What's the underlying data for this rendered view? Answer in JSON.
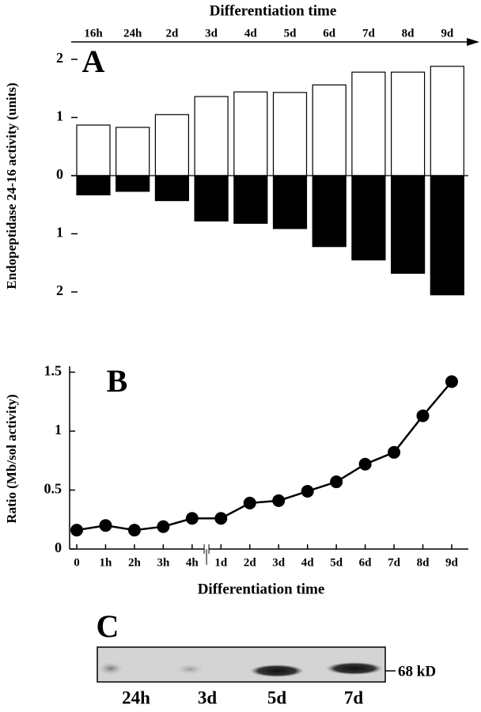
{
  "chart_data": [
    {
      "type": "bar",
      "title": "Differentiation time",
      "annotations": [
        "A"
      ],
      "y_label": "Endopeptidase 24-16 activity (units)",
      "categories": [
        "16h",
        "24h",
        "2d",
        "3d",
        "4d",
        "5d",
        "6d",
        "7d",
        "8d",
        "9d"
      ],
      "series": [
        {
          "color": "#ffffff",
          "values": [
            0.87,
            0.83,
            1.05,
            1.36,
            1.44,
            1.43,
            1.56,
            1.78,
            1.78,
            1.88
          ]
        },
        {
          "color": "#000000",
          "values": [
            -0.33,
            -0.27,
            -0.43,
            -0.78,
            -0.82,
            -0.91,
            -1.22,
            -1.45,
            -1.68,
            -2.05
          ]
        }
      ],
      "ylim": [
        -2.1,
        2.1
      ],
      "yticks": [
        2,
        1,
        0,
        {
          "value": -1,
          "label": "1"
        },
        {
          "value": -2,
          "label": "2"
        }
      ]
    },
    {
      "type": "line",
      "annotations": [
        "B"
      ],
      "x_label": "Differentiation time",
      "y_label": "Ratio (Mb/sol activity)",
      "categories": [
        "0",
        "1h",
        "2h",
        "3h",
        "4h",
        "1d",
        "2d",
        "3d",
        "4d",
        "5d",
        "6d",
        "7d",
        "8d",
        "9d"
      ],
      "series": [
        {
          "color": "#000000",
          "values": [
            0.16,
            0.2,
            0.16,
            0.19,
            0.26,
            0.26,
            0.39,
            0.41,
            0.49,
            0.57,
            0.72,
            0.82,
            1.13,
            1.42
          ]
        }
      ],
      "ylim": [
        0,
        1.55
      ],
      "yticks": [
        0,
        0.5,
        1,
        1.5
      ]
    }
  ],
  "blot": {
    "label": "C",
    "lanes": [
      "24h",
      "3d",
      "5d",
      "7d"
    ],
    "marker": "68 kD"
  }
}
